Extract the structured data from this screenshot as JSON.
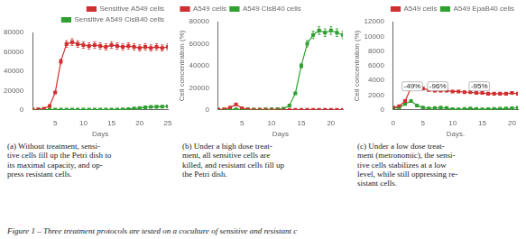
{
  "title": "Figure 1 – Three treatment protocols are tested on a coculture of sensitive and resistant c",
  "chart_data": [
    {
      "type": "line",
      "subtitle": "(a)  Without treatment, sensi-\ntive cells fill up the Petri dish to\nits maximal capacity, and op-\npress resistant cells.",
      "xlabel": "Days",
      "legend": "center right",
      "grid": false,
      "marker": "square",
      "x": [
        1,
        2,
        3,
        4,
        5,
        6,
        7,
        8,
        9,
        10,
        11,
        12,
        13,
        14,
        15,
        16,
        17,
        18,
        19,
        20,
        21,
        22,
        23,
        24,
        25
      ],
      "xlim": [
        1,
        25
      ],
      "xticks": [
        5,
        10,
        15,
        20,
        25
      ],
      "ylim": [
        0,
        80000
      ],
      "yticks": [
        0,
        20000,
        40000,
        60000,
        80000
      ],
      "series": [
        {
          "name": "Sensitive A549 cells",
          "color": "#d03030",
          "values": [
            200,
            400,
            1200,
            4000,
            18000,
            50000,
            68000,
            70000,
            68000,
            67000,
            66000,
            67000,
            66000,
            65000,
            67000,
            66000,
            65000,
            66000,
            65000,
            64000,
            65000,
            64000,
            65000,
            64000,
            65000
          ],
          "errors": [
            10,
            20,
            60,
            200,
            900,
            2500,
            3400,
            3500,
            3400,
            3350,
            3300,
            3350,
            3300,
            3250,
            3350,
            3300,
            3250,
            3300,
            3250,
            3200,
            3250,
            3200,
            3250,
            3200,
            3250
          ]
        },
        {
          "name": "Sensitive A549 CisB40 cells",
          "color": "#30a030",
          "values": [
            100,
            150,
            200,
            250,
            300,
            250,
            200,
            150,
            180,
            200,
            150,
            180,
            200,
            250,
            300,
            350,
            400,
            800,
            1400,
            2000,
            2500,
            3000,
            3200,
            3400,
            3600
          ],
          "errors": [
            5,
            7.5,
            10,
            12.5,
            15,
            12.5,
            10,
            7.5,
            9,
            10,
            7.5,
            9,
            10,
            12.5,
            15,
            17.5,
            20,
            40,
            70,
            100,
            125,
            150,
            160,
            170,
            180
          ]
        }
      ]
    },
    {
      "type": "line",
      "subtitle": "(b) Under a high dose treat-\nment, all sensitive cells are\nkilled, and resistant cells fill up\nthe Petri dish.",
      "xlabel": "Days",
      "ylabel": "Cell concentration (%)",
      "legend": "upper left",
      "grid": false,
      "marker": "square",
      "x": [
        1,
        2,
        3,
        4,
        5,
        6,
        7,
        8,
        9,
        10,
        11,
        12,
        13,
        14,
        15,
        16,
        17,
        18,
        19,
        20,
        21,
        22
      ],
      "xlim": [
        1,
        22
      ],
      "xticks": [
        5,
        10,
        15,
        20
      ],
      "ylim": [
        0,
        80000
      ],
      "yticks": [
        0,
        20000,
        40000,
        60000,
        80000
      ],
      "series": [
        {
          "name": "A549 cells",
          "color": "#d03030",
          "values": [
            300,
            500,
            2000,
            5000,
            1500,
            400,
            100,
            50,
            30,
            20,
            20,
            20,
            20,
            20,
            20,
            20,
            20,
            20,
            20,
            20,
            20,
            20
          ],
          "errors": [
            15,
            25,
            100,
            250,
            75,
            20,
            5,
            2.5,
            1.5,
            1,
            1,
            1,
            1,
            1,
            1,
            1,
            1,
            1,
            1,
            1,
            1,
            1
          ]
        },
        {
          "name": "A549 CisB40 cells",
          "color": "#30a030",
          "values": [
            200,
            300,
            400,
            500,
            400,
            350,
            300,
            250,
            350,
            450,
            600,
            1000,
            4000,
            15000,
            40000,
            60000,
            68000,
            72000,
            70000,
            72000,
            70000,
            68000
          ],
          "errors": [
            10,
            15,
            20,
            25,
            20,
            17.5,
            15,
            12.5,
            17.5,
            22.5,
            30,
            50,
            200,
            750,
            2000,
            3000,
            3400,
            3600,
            3500,
            3600,
            3500,
            3400
          ]
        }
      ]
    },
    {
      "type": "line",
      "subtitle": "(c)  Under a low dose treat-\nment (metronomic), the sensi-\ntive cells stabilizes at a low\nlevel, while still oppressing re-\nsistant cells.",
      "xlabel": "Days.",
      "ylabel": "Cell concentration (%)",
      "legend": "upper right",
      "grid": false,
      "marker": "square",
      "x": [
        0,
        1,
        2,
        3,
        4,
        5,
        6,
        7,
        8,
        9,
        10,
        11,
        12,
        13,
        14,
        15,
        16,
        17,
        18,
        19,
        20,
        21
      ],
      "xlim": [
        0,
        21
      ],
      "xticks": [
        0,
        5,
        10,
        15,
        20
      ],
      "ylim": [
        0,
        12000
      ],
      "yticks": [
        0,
        2000,
        4000,
        6000,
        8000,
        10000,
        12000
      ],
      "annotations": [
        {
          "text": "-49%",
          "x": 3.2,
          "y": 3200
        },
        {
          "text": "-96%",
          "x": 7.5,
          "y": 3200
        },
        {
          "text": "-95%",
          "x": 14.5,
          "y": 3200
        }
      ],
      "series": [
        {
          "name": "A549 cells",
          "color": "#d03030",
          "values": [
            300,
            500,
            1200,
            3000,
            3200,
            2900,
            2700,
            2600,
            2600,
            2600,
            2500,
            2500,
            2400,
            2400,
            2300,
            2300,
            2200,
            2200,
            2200,
            2200,
            2300,
            2200
          ],
          "errors": [
            15,
            25,
            60,
            150,
            160,
            145,
            135,
            130,
            130,
            130,
            125,
            125,
            120,
            120,
            115,
            115,
            110,
            110,
            110,
            110,
            115,
            110
          ]
        },
        {
          "name": "A549 EpaB40 cells",
          "color": "#30a030",
          "values": [
            200,
            300,
            800,
            1200,
            600,
            300,
            200,
            250,
            300,
            250,
            100,
            80,
            120,
            180,
            120,
            80,
            100,
            130,
            160,
            180,
            220,
            280
          ],
          "errors": [
            10,
            15,
            40,
            60,
            30,
            15,
            10,
            12.5,
            15,
            12.5,
            5,
            4,
            6,
            9,
            6,
            4,
            5,
            6.5,
            8,
            9,
            11,
            14
          ]
        }
      ]
    }
  ]
}
